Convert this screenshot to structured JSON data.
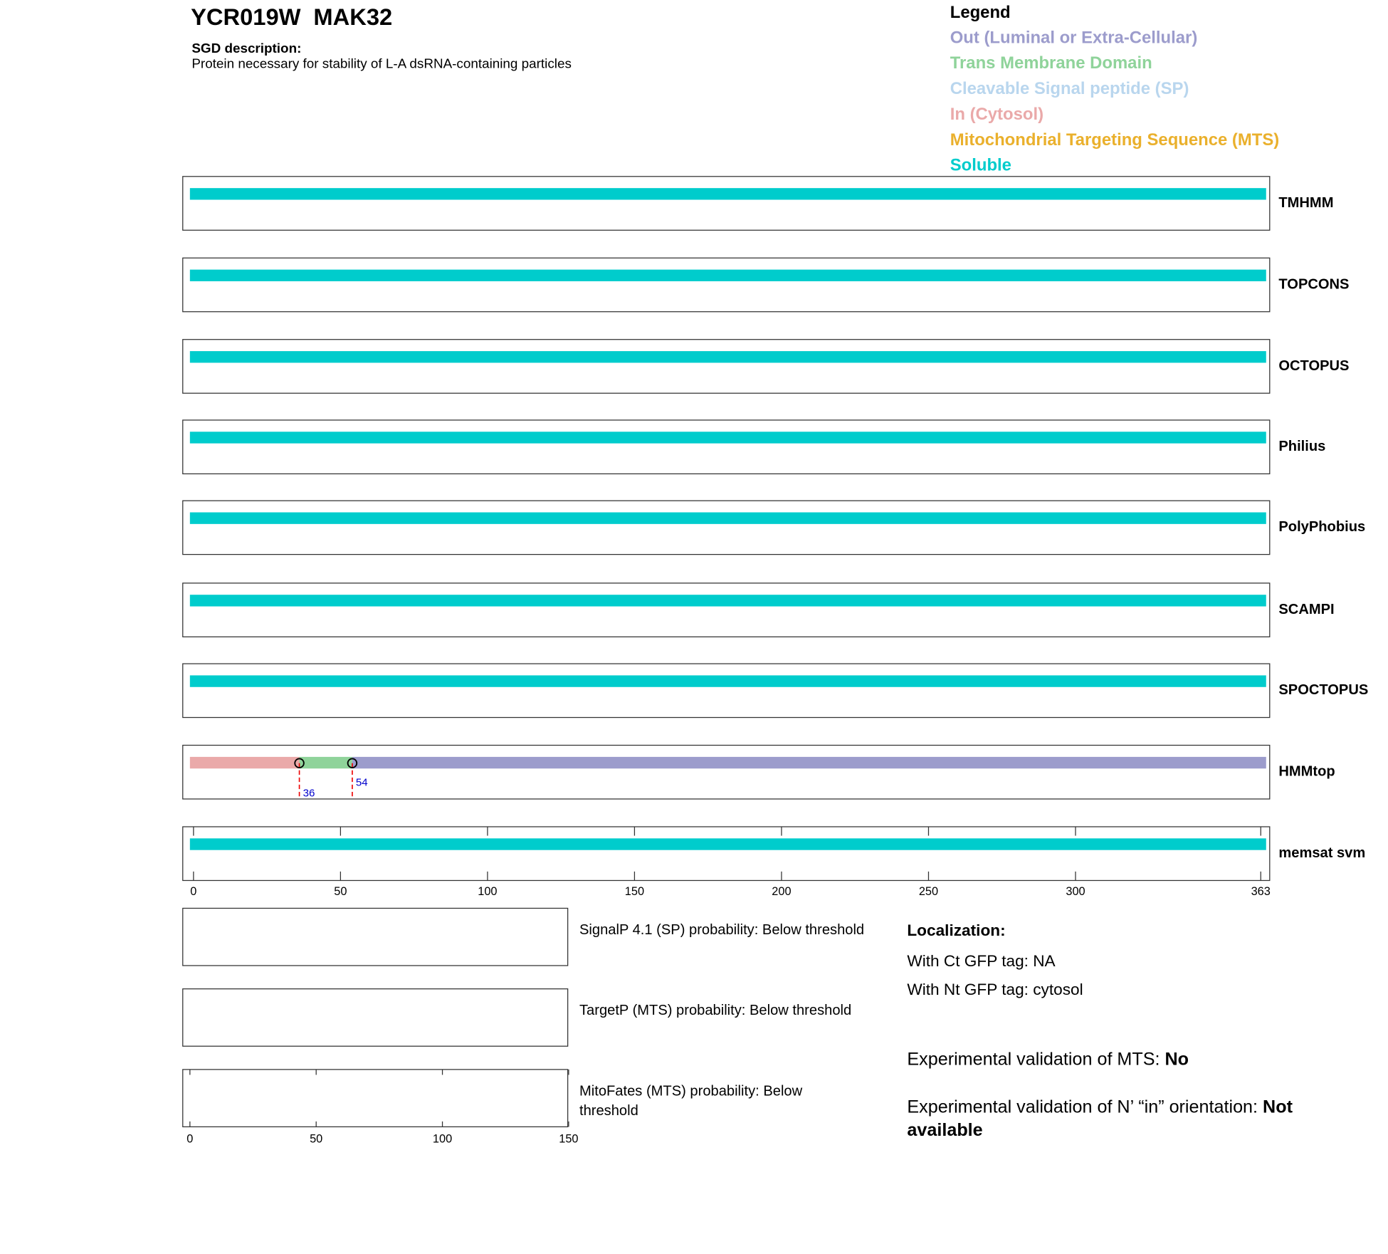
{
  "header": {
    "gene": "YCR019W",
    "name": "MAK32",
    "description_label": "SGD description:",
    "description": "Protein necessary for stability of L-A dsRNA-containing particles"
  },
  "legend": {
    "title": "Legend",
    "items": [
      {
        "label": "Out (Luminal or Extra-Cellular)",
        "color": "#9c9ccc"
      },
      {
        "label": "Trans Membrane Domain",
        "color": "#8fd39a"
      },
      {
        "label": "Cleavable Signal peptide (SP)",
        "color": "#b9d6ee"
      },
      {
        "label": "In (Cytosol)",
        "color": "#eaa9a9"
      },
      {
        "label": "Mitochondrial Targeting Sequence (MTS)",
        "color": "#eab02c"
      },
      {
        "label": "Soluble",
        "color": "#00cccc"
      }
    ]
  },
  "chart_data": {
    "type": "topology",
    "xlim": [
      0,
      363
    ],
    "xticks": [
      0,
      50,
      100,
      150,
      200,
      250,
      300,
      363
    ],
    "tracks": [
      {
        "name": "TMHMM",
        "segments": [
          {
            "start": 0,
            "end": 363,
            "legend_item": 5
          }
        ]
      },
      {
        "name": "TOPCONS",
        "segments": [
          {
            "start": 0,
            "end": 363,
            "legend_item": 5
          }
        ]
      },
      {
        "name": "OCTOPUS",
        "segments": [
          {
            "start": 0,
            "end": 363,
            "legend_item": 5
          }
        ]
      },
      {
        "name": "Philius",
        "segments": [
          {
            "start": 0,
            "end": 363,
            "legend_item": 5
          }
        ]
      },
      {
        "name": "PolyPhobius",
        "segments": [
          {
            "start": 0,
            "end": 363,
            "legend_item": 5
          }
        ]
      },
      {
        "name": "SCAMPI",
        "segments": [
          {
            "start": 0,
            "end": 363,
            "legend_item": 5
          }
        ]
      },
      {
        "name": "SPOCTOPUS",
        "segments": [
          {
            "start": 0,
            "end": 363,
            "legend_item": 5
          }
        ]
      },
      {
        "name": "HMMtop",
        "segments": [
          {
            "start": 0,
            "end": 36,
            "legend_item": 3
          },
          {
            "start": 36,
            "end": 54,
            "legend_item": 1
          },
          {
            "start": 54,
            "end": 363,
            "legend_item": 0
          }
        ],
        "boundaries": [
          36,
          54
        ]
      },
      {
        "name": "memsat svm",
        "segments": [
          {
            "start": 0,
            "end": 363,
            "legend_item": 5
          }
        ]
      }
    ]
  },
  "probability_chart": {
    "xlim": [
      0,
      150
    ],
    "xticks": [
      0,
      50,
      100,
      150
    ],
    "panels": [
      {
        "label": "SignalP 4.1 (SP) probability: Below threshold"
      },
      {
        "label": "TargetP (MTS) probability: Below threshold"
      },
      {
        "label": "MitoFates (MTS) probability: Below threshold"
      }
    ]
  },
  "localization": {
    "title": "Localization:",
    "ct": "With Ct GFP tag: NA",
    "nt": "With Nt GFP tag: cytosol",
    "mts_label": "Experimental validation of MTS:",
    "mts_value": "No",
    "orientation_label": "Experimental validation of N’ “in” orientation:",
    "orientation_value": "Not available"
  }
}
